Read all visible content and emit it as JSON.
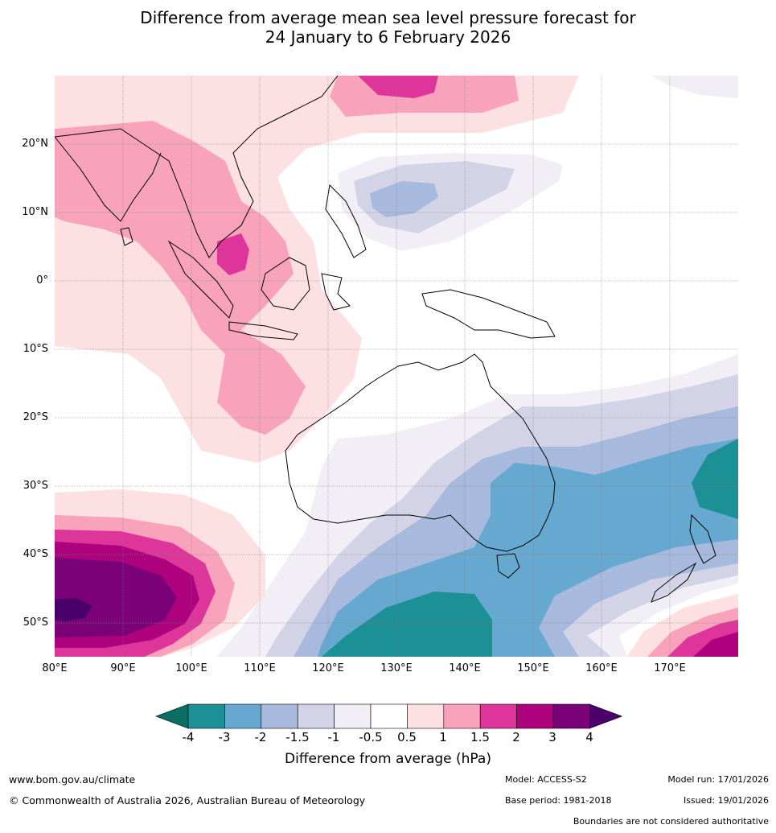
{
  "title_line1": "Difference from average mean sea level pressure forecast for",
  "title_line2": "24 January to 6 February 2026",
  "lat_labels": [
    "20°N",
    "10°N",
    "0°",
    "10°S",
    "20°S",
    "30°S",
    "40°S",
    "50°S"
  ],
  "lon_labels": [
    "80°E",
    "90°E",
    "100°E",
    "110°E",
    "120°E",
    "130°E",
    "140°E",
    "150°E",
    "160°E",
    "170°E"
  ],
  "colorbar": {
    "title": "Difference from average (hPa)",
    "ticks": [
      "-4",
      "-3",
      "-2",
      "-1.5",
      "-1",
      "-0.5",
      "0.5",
      "1",
      "1.5",
      "2",
      "3",
      "4"
    ],
    "colors": [
      "#0b6e62",
      "#1b9196",
      "#66a8cf",
      "#a7b9dc",
      "#d3d3e7",
      "#f2eef5",
      "#ffffff",
      "#fde0e1",
      "#f8a2bb",
      "#dd3599",
      "#ad017e",
      "#7a0177",
      "#49006a"
    ]
  },
  "footer": {
    "site": "www.bom.gov.au/climate",
    "copyright": "© Commonwealth of Australia 2026, Australian Bureau of Meteorology",
    "model": "Model: ACCESS-S2",
    "base_period": "Base period: 1981-2018",
    "model_run": "Model run: 17/01/2026",
    "issued": "Issued: 19/01/2026",
    "disclaimer": "Boundaries are not considered authoritative"
  }
}
